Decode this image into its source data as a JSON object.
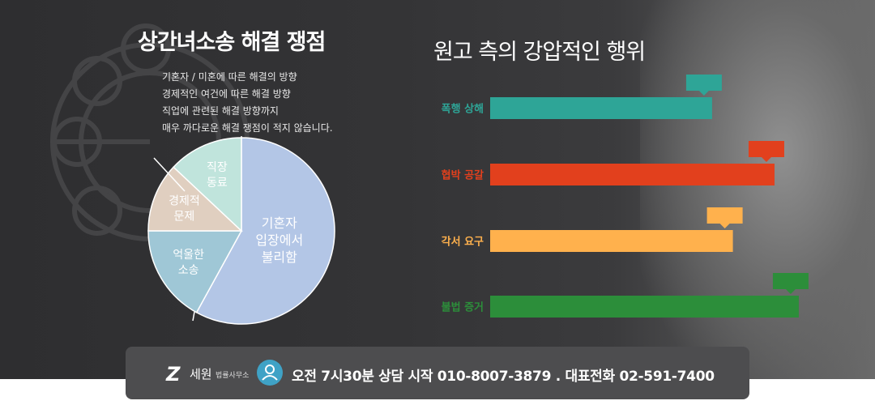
{
  "chart_data": [
    {
      "type": "pie",
      "title": "상간녀소송 해결 쟁점",
      "annotation_lines": [
        "기혼자 / 미혼에 따른 해결의 방향",
        "경제적인 여건에 따른 해결 방향",
        "직업에 관련된 해결 방향까지",
        "매우 까다로운 해결 쟁점이 적지 않습니다."
      ],
      "slices": [
        {
          "label_lines": [
            "기혼자",
            "입장에서",
            "불리함"
          ],
          "value": 58,
          "color": "#b3c6e6"
        },
        {
          "label_lines": [
            "억울한",
            "소송"
          ],
          "value": 17,
          "color": "#9fc7d6"
        },
        {
          "label_lines": [
            "경제적",
            "문제"
          ],
          "value": 12,
          "color": "#e0cfc0"
        },
        {
          "label_lines": [
            "직장",
            "동료"
          ],
          "value": 13,
          "color": "#c0e4dc"
        }
      ]
    },
    {
      "type": "bar",
      "orientation": "horizontal",
      "title": "원고 측의 강압적인 행위",
      "categories": [
        "폭행 상해",
        "협박 공갈",
        "각서 요구",
        "불법 증거"
      ],
      "values": [
        64,
        82,
        70,
        89
      ],
      "colors": [
        "#2ea597",
        "#e2401d",
        "#ffb14d",
        "#2c8e3a"
      ],
      "xlim": [
        0,
        100
      ]
    }
  ],
  "footer": {
    "logo_mark": "Z",
    "logo_name": "세원",
    "logo_sub": "법률사무소",
    "contact": "오전 7시30분 상담 시작 010-8007-3879 . 대표전화 02-591-7400",
    "icon_color": "#3fa2c6"
  }
}
